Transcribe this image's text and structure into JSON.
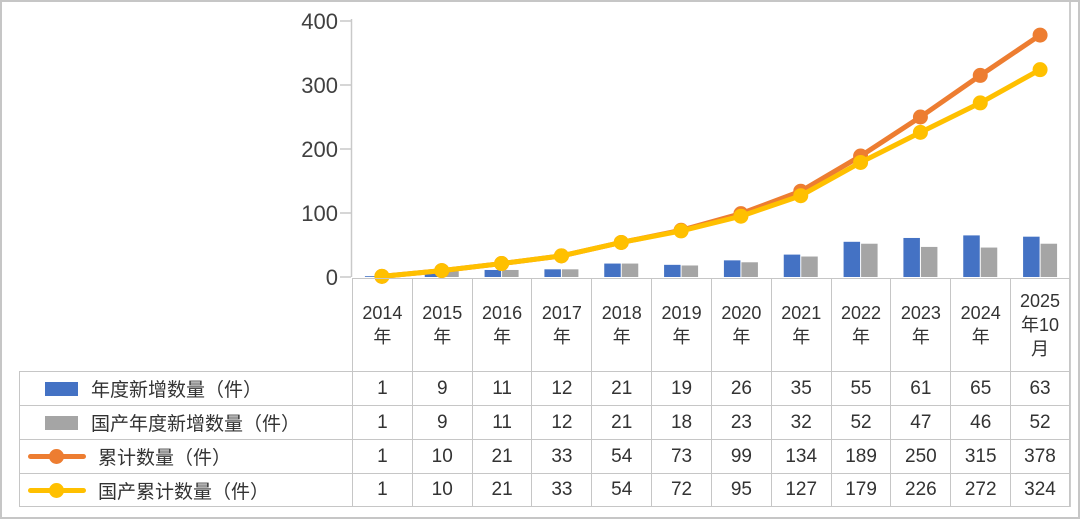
{
  "frame": {
    "border_color": "#c6c6c6",
    "table_border_color": "#c6c6c6",
    "axis_color": "#c9c9c9",
    "text_color": "#333333",
    "axis_label_color": "#404040"
  },
  "chart_data": {
    "type": "combo-bar-line",
    "title": "",
    "xlabel": "",
    "ylabel": "",
    "grid": false,
    "legend_position": "data-table-left-keys",
    "ylim": [
      0,
      400
    ],
    "yticks": [
      0,
      100,
      200,
      300,
      400
    ],
    "categories": [
      "2014年",
      "2015年",
      "2016年",
      "2017年",
      "2018年",
      "2019年",
      "2020年",
      "2021年",
      "2022年",
      "2023年",
      "2024年",
      "2025年10月"
    ],
    "series": [
      {
        "name": "年度新增数量（件）",
        "type": "bar",
        "color": "#4472C4",
        "values": [
          1,
          9,
          11,
          12,
          21,
          19,
          26,
          35,
          55,
          61,
          65,
          63
        ]
      },
      {
        "name": "国产年度新增数量（件）",
        "type": "bar",
        "color": "#A5A5A5",
        "values": [
          1,
          9,
          11,
          12,
          21,
          18,
          23,
          32,
          52,
          47,
          46,
          52
        ]
      },
      {
        "name": "累计数量（件）",
        "type": "line",
        "color": "#ED7D31",
        "values": [
          1,
          10,
          21,
          33,
          54,
          73,
          99,
          134,
          189,
          250,
          315,
          378
        ]
      },
      {
        "name": "国产累计数量（件）",
        "type": "line",
        "color": "#FFC000",
        "values": [
          1,
          10,
          21,
          33,
          54,
          72,
          95,
          127,
          179,
          226,
          272,
          324
        ]
      }
    ]
  }
}
